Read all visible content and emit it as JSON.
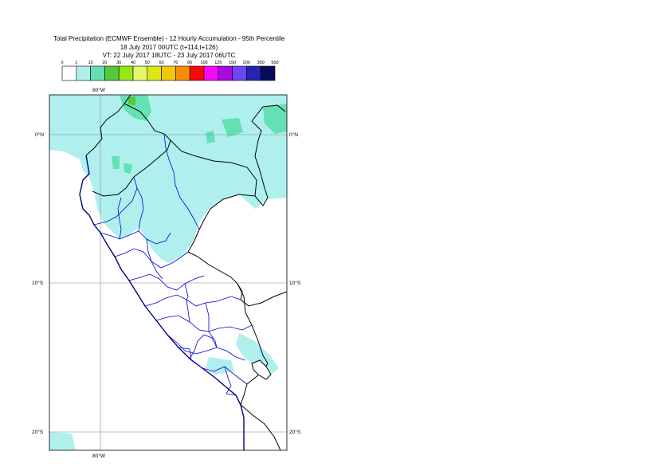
{
  "title": {
    "line1": "Total Precipitation (ECMWF Ensemble) - 12 Hourly Accumulation - 95th Percentile",
    "line2": "18 July 2017 00UTC (t+114,t+126)",
    "line3": "VT: 22 July 2017 18UTC - 23 July 2017 06UTC"
  },
  "legend": {
    "ticks": [
      "0",
      "1",
      "10",
      "20",
      "30",
      "40",
      "50",
      "60",
      "70",
      "80",
      "100",
      "125",
      "150",
      "200",
      "300",
      "500"
    ],
    "colors": [
      "#ffffff",
      "#aff0ee",
      "#64e0b4",
      "#55c83c",
      "#96e619",
      "#e6f56e",
      "#dce619",
      "#f0c80a",
      "#f58c0a",
      "#f50a0a",
      "#f50af5",
      "#aa0adc",
      "#6e46f0",
      "#2323b4",
      "#0a0a5a"
    ]
  },
  "map": {
    "lon_labels": [
      "80°W",
      "80°W"
    ],
    "lat_labels": [
      "0°N",
      "10°S",
      "20°S"
    ],
    "lat_labels_right": [
      "0°N",
      "10°S",
      "20°S"
    ],
    "colors": {
      "precip_light": "#aff0ee",
      "precip_mid": "#64e0b4",
      "precip_high": "#55c83c",
      "coastline": "#000080",
      "borders": "#000000",
      "admin": "#0000cc",
      "grid": "#888888"
    }
  }
}
